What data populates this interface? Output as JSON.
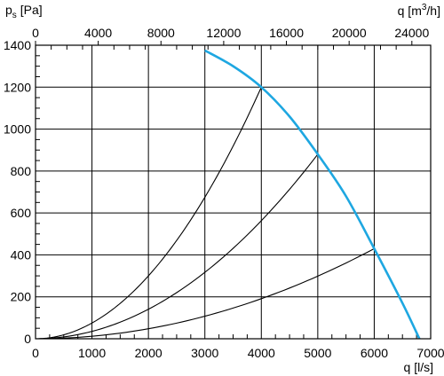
{
  "chart_data": {
    "type": "line",
    "title": "",
    "ylabel_main": "p",
    "ylabel_sub": "s",
    "ylabel_unit": "[Pa]",
    "xlabel": "q [l/s]",
    "x2label_main": "q [m",
    "x2label_sup": "3",
    "x2label_end": "/h]",
    "xlim": [
      0,
      7000
    ],
    "ylim": [
      0,
      1400
    ],
    "x_ticks": [
      "0",
      "1000",
      "2000",
      "3000",
      "4000",
      "5000",
      "6000",
      "7000"
    ],
    "x_tick_values": [
      0,
      1000,
      2000,
      3000,
      4000,
      5000,
      6000,
      7000
    ],
    "y_ticks": [
      "0",
      "200",
      "400",
      "600",
      "800",
      "1000",
      "1200",
      "1400"
    ],
    "y_tick_values": [
      0,
      200,
      400,
      600,
      800,
      1000,
      1200,
      1400
    ],
    "x2_ticks": [
      "0",
      "4000",
      "8000",
      "12000",
      "16000",
      "20000",
      "24000"
    ],
    "x2_tick_values": [
      0,
      4000,
      8000,
      12000,
      16000,
      20000,
      24000
    ],
    "x2_per_x": 3.6,
    "grid": true,
    "minor_y_step": 50,
    "minor_x_step": 250,
    "colors": {
      "fan_curve": "#1ea7e1",
      "system_curve": "#000000",
      "grid": "#000000"
    },
    "fan_curve": {
      "x": [
        3000,
        3500,
        4000,
        4500,
        5000,
        5500,
        6000,
        6500,
        6800
      ],
      "y": [
        1375,
        1300,
        1200,
        1060,
        880,
        680,
        430,
        170,
        0
      ]
    },
    "system_curves": [
      {
        "x_end": 4000,
        "y_end": 1200
      },
      {
        "x_end": 5000,
        "y_end": 880
      },
      {
        "x_end": 6000,
        "y_end": 430
      }
    ]
  }
}
